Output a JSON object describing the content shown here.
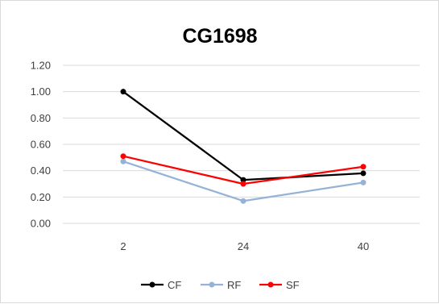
{
  "chart_data": {
    "type": "line",
    "title": "CG1698",
    "xlabel": "",
    "ylabel": "",
    "categories": [
      "2",
      "24",
      "40"
    ],
    "ylim": [
      0,
      1.2
    ],
    "ytick_labels": [
      "0.00",
      "0.20",
      "0.40",
      "0.60",
      "0.80",
      "1.00",
      "1.20"
    ],
    "grid": true,
    "legend_position": "bottom",
    "series": [
      {
        "name": "CF",
        "color": "#000000",
        "values": [
          1.0,
          0.33,
          0.38
        ]
      },
      {
        "name": "RF",
        "color": "#95b3d7",
        "values": [
          0.47,
          0.17,
          0.31
        ]
      },
      {
        "name": "SF",
        "color": "#ff0000",
        "values": [
          0.51,
          0.3,
          0.43
        ]
      }
    ]
  }
}
